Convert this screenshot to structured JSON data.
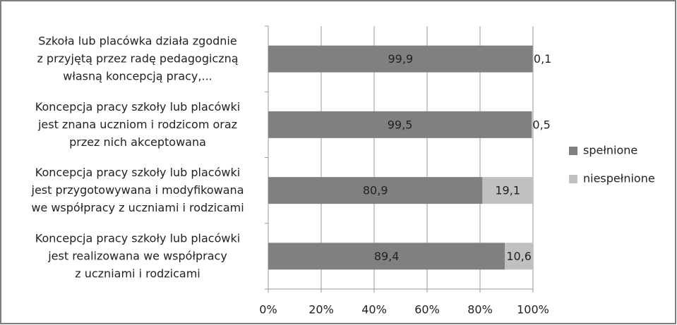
{
  "chart_data": {
    "type": "stacked_barh",
    "categories": [
      "Szkoła lub placówka działa zgodnie\nz przyjętą przez radę pedagogiczną\nwłasną koncepcją pracy,...",
      "Koncepcja pracy szkoły lub placówki\njest znana uczniom i rodzicom oraz\nprzez nich akceptowana",
      "Koncepcja pracy szkoły lub placówki\njest przygotowywana i modyfikowana\nwe współpracy z uczniami i rodzicami",
      "Koncepcja pracy szkoły lub placówki\njest realizowana we współpracy\nz uczniami i rodzicami"
    ],
    "series": [
      {
        "name": "spełnione",
        "color": "#808080",
        "values": [
          99.9,
          99.5,
          80.9,
          89.4
        ],
        "value_labels": [
          "99,9",
          "99,5",
          "80,9",
          "89,4"
        ]
      },
      {
        "name": "niespełnione",
        "color": "#c0c0c0",
        "values": [
          0.1,
          0.5,
          19.1,
          10.6
        ],
        "value_labels": [
          "0,1",
          "0,5",
          "19,1",
          "10,6"
        ]
      }
    ],
    "xlim": [
      0,
      100
    ],
    "xticks": [
      {
        "value": 0,
        "label": "0%"
      },
      {
        "value": 20,
        "label": "20%"
      },
      {
        "value": 40,
        "label": "40%"
      },
      {
        "value": 60,
        "label": "60%"
      },
      {
        "value": 80,
        "label": "80%"
      },
      {
        "value": 100,
        "label": "100%"
      }
    ],
    "grid": true,
    "legend": "right"
  }
}
